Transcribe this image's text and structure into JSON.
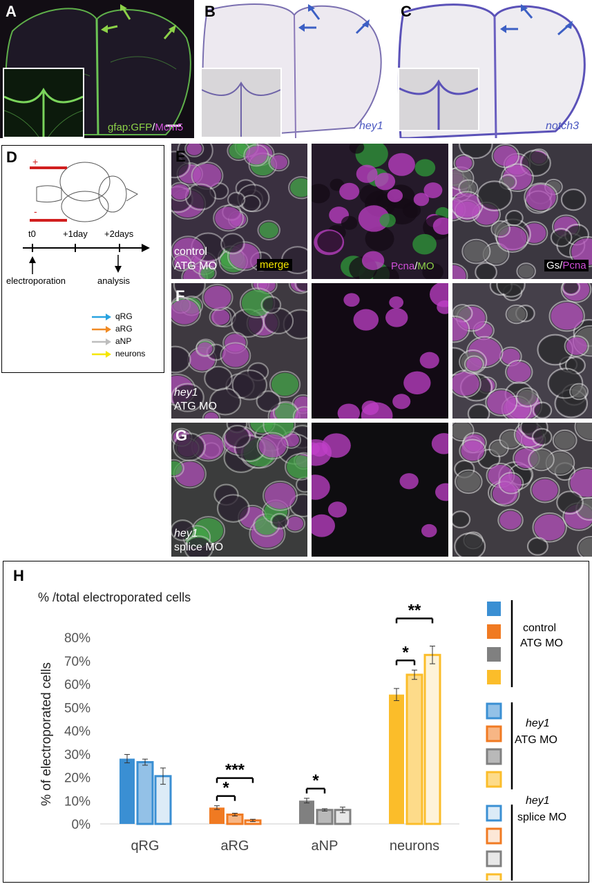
{
  "panels": {
    "A": {
      "letter": "A",
      "stain_green": "gfap:GFP",
      "slash": "/",
      "stain_magenta": "Mcm5"
    },
    "B": {
      "letter": "B",
      "gene": "hey1"
    },
    "C": {
      "letter": "C",
      "gene": "notch3"
    },
    "D": {
      "letter": "D",
      "timeline": {
        "t0": "t0",
        "t1": "+1day",
        "t2": "+2days",
        "start_event": "electroporation",
        "end_event": "analysis"
      },
      "legend": [
        {
          "label": "qRG",
          "color": "#29a3e0"
        },
        {
          "label": "aRG",
          "color": "#f08a24"
        },
        {
          "label": "aNP",
          "color": "#bdbdbd"
        },
        {
          "label": "neurons",
          "color": "#f5e600"
        }
      ]
    },
    "E": {
      "letter": "E",
      "cond_line1": "control",
      "cond_line2": "ATG MO",
      "merge_label": "merge",
      "mid_label_magenta": "Pcna",
      "mid_label_slash": "/",
      "mid_label_green": "MO",
      "right_label_white": "Gs",
      "right_label_slash": "/",
      "right_label_magenta": "Pcna"
    },
    "F": {
      "letter": "F",
      "cond_line1": "hey1",
      "cond_line2": "ATG MO"
    },
    "G": {
      "letter": "G",
      "cond_line1": "hey1",
      "cond_line2": "splice MO"
    },
    "H": {
      "letter": "H"
    }
  },
  "chart_data": {
    "type": "bar",
    "title": "% /total electroporated cells",
    "ylabel": "% of electroporated cells",
    "ylim": [
      0,
      80
    ],
    "yticks": [
      "0%",
      "10%",
      "20%",
      "30%",
      "40%",
      "50%",
      "60%",
      "70%",
      "80%"
    ],
    "categories": [
      "qRG",
      "aRG",
      "aNP",
      "neurons"
    ],
    "series": [
      {
        "name": "control ATG MO",
        "values": [
          28,
          7,
          10,
          55.5
        ],
        "errors": [
          1.8,
          0.8,
          1.0,
          2.6
        ]
      },
      {
        "name": "hey1 ATG MO",
        "values": [
          26.5,
          4,
          6,
          64
        ],
        "errors": [
          1.3,
          0.6,
          0.5,
          2.0
        ]
      },
      {
        "name": "hey1 splice MO",
        "values": [
          20.5,
          1.5,
          6,
          72.5
        ],
        "errors": [
          3.5,
          0.5,
          1.2,
          3.8
        ]
      }
    ],
    "category_colors": [
      "#3a8fd3",
      "#f07a22",
      "#808080",
      "#fbbd2a"
    ],
    "significance": [
      {
        "category": "aRG",
        "from": 0,
        "to": 1,
        "label": "*"
      },
      {
        "category": "aRG",
        "from": 0,
        "to": 2,
        "label": "***"
      },
      {
        "category": "aNP",
        "from": 0,
        "to": 1,
        "label": "*"
      },
      {
        "category": "neurons",
        "from": 0,
        "to": 1,
        "label": "*"
      },
      {
        "category": "neurons",
        "from": 0,
        "to": 2,
        "label": "**"
      }
    ],
    "legend": [
      {
        "line1": "",
        "line2": "control",
        "line3": "ATG MO"
      },
      {
        "line1": "hey1",
        "line2": "ATG MO"
      },
      {
        "line1": "hey1",
        "line2": "splice MO"
      }
    ],
    "grid": false
  }
}
